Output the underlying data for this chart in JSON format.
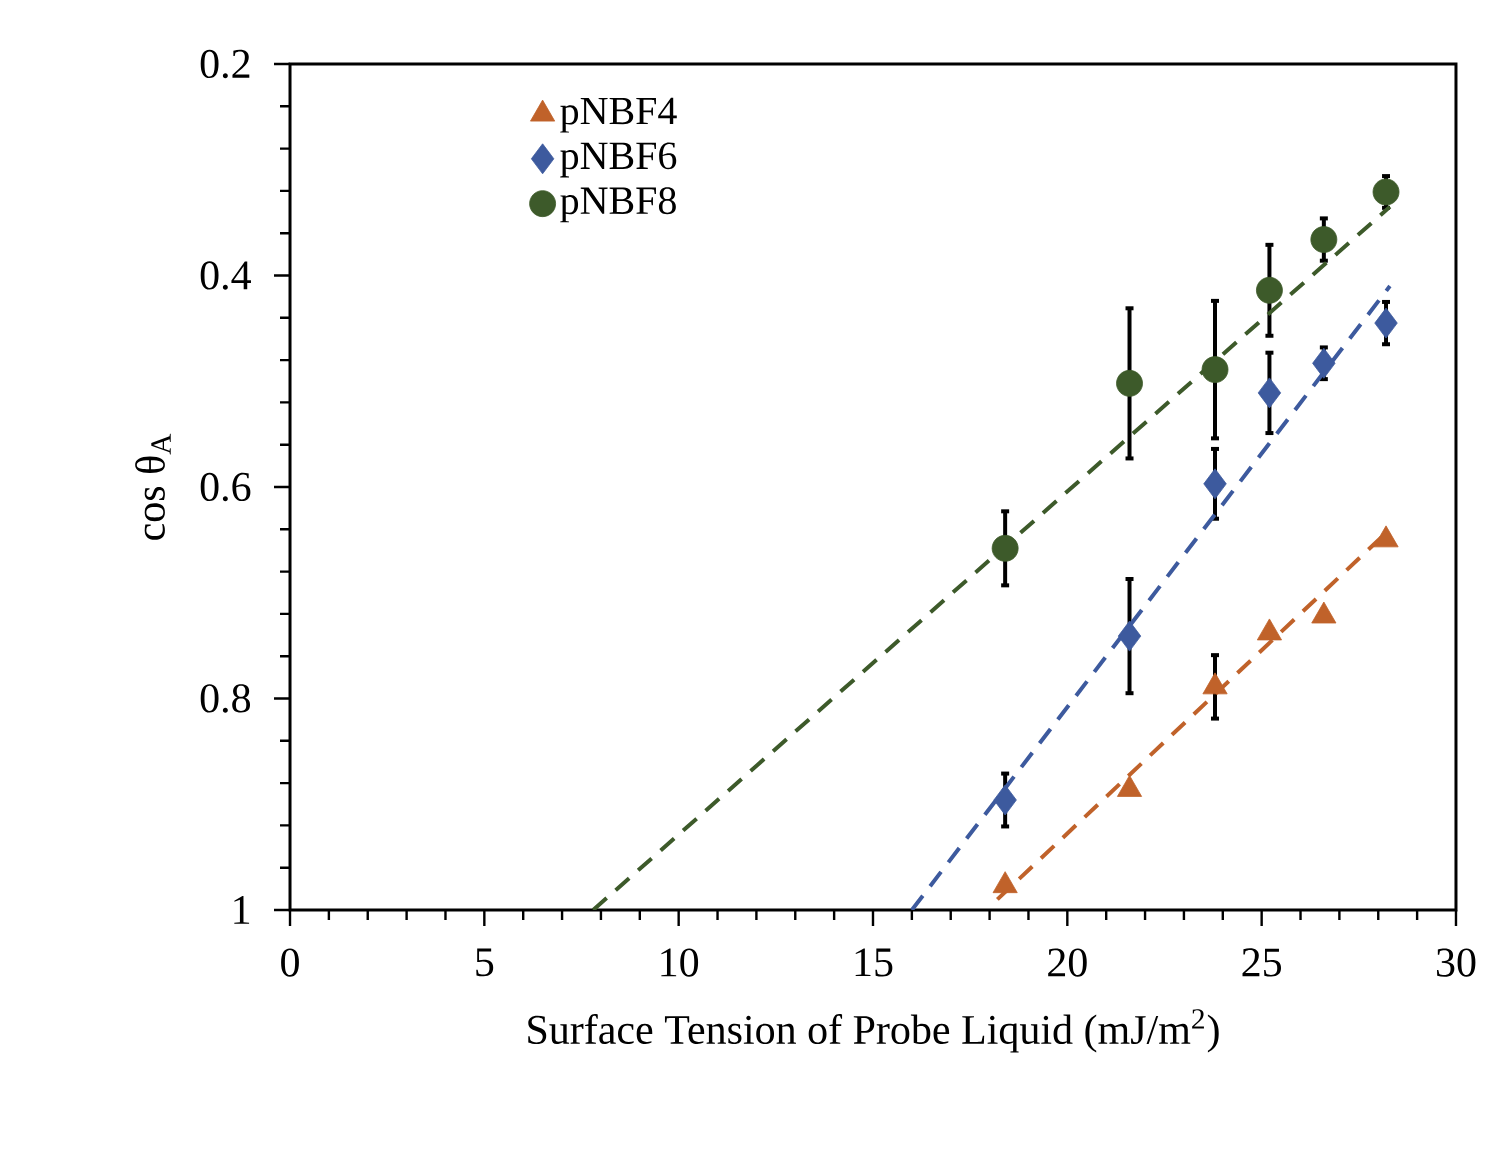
{
  "chart_data": {
    "type": "scatter",
    "xlabel": "Surface Tension of Probe Liquid (mJ/m$^{2}$)",
    "ylabel": "cos θ$_{A}$",
    "xlim": [
      0,
      30
    ],
    "xticks": [
      0,
      5,
      10,
      15,
      20,
      25,
      30
    ],
    "ylim": [
      1,
      0.2
    ],
    "yticks": [
      0.2,
      0.4,
      0.6,
      0.8,
      1
    ],
    "legend": "top left",
    "grid": false,
    "series": [
      {
        "name": "pNBF4",
        "color": "#c0622a",
        "marker": "triangle",
        "x": [
          18.4,
          21.6,
          23.8,
          25.2,
          26.6,
          28.2
        ],
        "values": [
          0.977,
          0.886,
          0.789,
          0.738,
          0.722,
          0.65
        ],
        "errors": [
          null,
          null,
          0.03,
          null,
          null,
          null
        ]
      },
      {
        "name": "pNBF6",
        "color": "#3d5a9e",
        "marker": "diamond",
        "x": [
          18.4,
          21.6,
          23.8,
          25.2,
          26.6,
          28.2
        ],
        "values": [
          0.896,
          0.741,
          0.597,
          0.511,
          0.483,
          0.445
        ],
        "errors": [
          0.025,
          0.054,
          0.033,
          0.038,
          0.015,
          0.02
        ]
      },
      {
        "name": "pNBF8",
        "color": "#3d5a2a",
        "marker": "circle",
        "x": [
          18.4,
          21.6,
          23.8,
          25.2,
          26.6,
          28.2
        ],
        "values": [
          0.658,
          0.502,
          0.489,
          0.414,
          0.366,
          0.321
        ],
        "errors": [
          0.035,
          0.071,
          0.065,
          0.043,
          0.02,
          0.015
        ]
      },
      {
        "type": "line",
        "color": "#c0622a",
        "line_style": "dashed",
        "marker": "none",
        "x": [
          18.2,
          28.3
        ],
        "values": [
          0.99,
          0.64
        ]
      },
      {
        "type": "line",
        "color": "#3d5a9e",
        "line_style": "dashed",
        "marker": "none",
        "x": [
          16.0,
          28.3
        ],
        "values": [
          1.0,
          0.41
        ]
      },
      {
        "type": "line",
        "color": "#3d5a2a",
        "line_style": "dashed",
        "marker": "none",
        "x": [
          7.8,
          28.3
        ],
        "values": [
          1.0,
          0.335
        ]
      }
    ]
  }
}
